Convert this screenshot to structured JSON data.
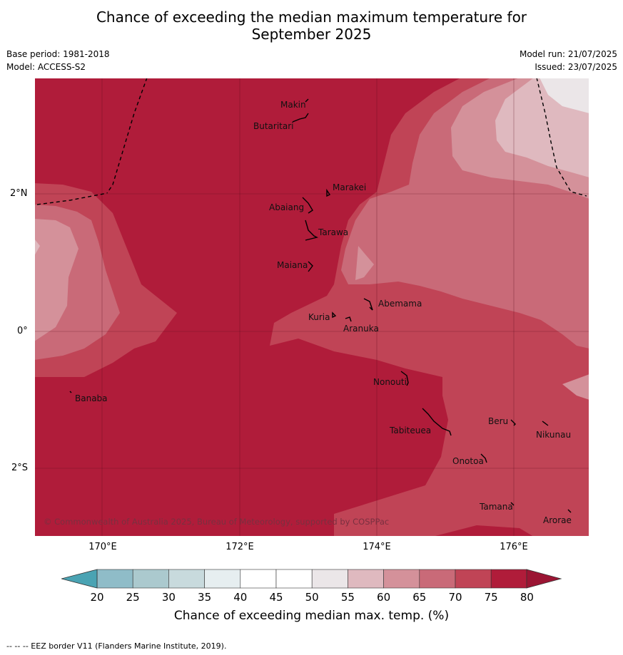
{
  "title_line1": "Chance of exceeding the median maximum temperature for",
  "title_line2": "September 2025",
  "base_period": "Base period: 1981-2018",
  "model": "Model: ACCESS-S2",
  "model_run": "Model run: 21/07/2025",
  "issued": "Issued: 23/07/2025",
  "lat_labels": [
    "2°N",
    "0°",
    "2°S"
  ],
  "lon_labels": [
    "170°E",
    "172°E",
    "174°E",
    "176°E"
  ],
  "places": [
    {
      "name": "Makin"
    },
    {
      "name": "Butaritari"
    },
    {
      "name": "Marakei"
    },
    {
      "name": "Abaiang"
    },
    {
      "name": "Tarawa"
    },
    {
      "name": "Maiana"
    },
    {
      "name": "Abemama"
    },
    {
      "name": "Kuria"
    },
    {
      "name": "Aranuka"
    },
    {
      "name": "Nonouti"
    },
    {
      "name": "Banaba"
    },
    {
      "name": "Beru"
    },
    {
      "name": "Nikunau"
    },
    {
      "name": "Tabiteuea"
    },
    {
      "name": "Onotoa"
    },
    {
      "name": "Tamana"
    },
    {
      "name": "Arorae"
    }
  ],
  "copyright": "© Commonwealth of Australia 2025, Bureau of Meteorology, supported by COSPPac",
  "colorbar": {
    "ticks": [
      "20",
      "25",
      "30",
      "35",
      "40",
      "45",
      "50",
      "55",
      "60",
      "65",
      "70",
      "75",
      "80"
    ],
    "colors": [
      "#6aafbf",
      "#8fbcc8",
      "#abc9ce",
      "#c8dadd",
      "#e6eef0",
      "#ffffff",
      "#ffffff",
      "#ebe6e8",
      "#dfb9bf",
      "#d4919a",
      "#c96a78",
      "#c04456",
      "#b01c3a"
    ],
    "title": "Chance of exceeding median max. temp. (%)"
  },
  "footer": "--  --  -- EEZ border V11 (Flanders Marine Institute, 2019).",
  "map_colors": {
    "c80": "#b01c3a",
    "c75": "#c04456",
    "c70": "#c96a78",
    "c65": "#d4919a",
    "c60": "#dfb9bf",
    "c55": "#ebe6e8"
  }
}
